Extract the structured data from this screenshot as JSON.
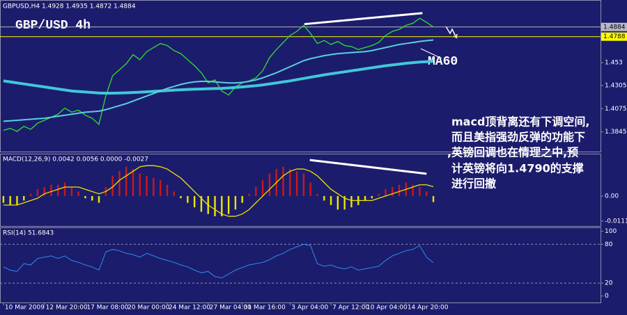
{
  "chart_data": [
    {
      "type": "line",
      "header": "GBPUSD,H4  1.4928 1.4935 1.4872 1.4884",
      "annotations": [
        "GBP/USD 4h",
        "MA60",
        "macd顶背离还有下调空间,",
        "而且美指强劲反弹的功能下",
        ",英镑回调也在情理之中,预",
        "计英镑将向1.4790的支撑",
        "进行回撤"
      ],
      "xlim": [
        -0.5,
        87.5
      ],
      "ylim": [
        1.365,
        1.5137
      ],
      "yticks": [
        1.453,
        1.4305,
        1.4075,
        1.3845
      ],
      "hlines": [
        {
          "value": 1.4884,
          "color": "#b8b8c8"
        },
        {
          "value": 1.4788,
          "color": "#ffff00"
        }
      ],
      "trendline": {
        "x": [
          44.1,
          61.4
        ],
        "y": [
          1.4912,
          1.5021
        ]
      },
      "series": [
        {
          "color": "#30e030",
          "width": 1.3,
          "values": [
            1.386,
            1.388,
            1.385,
            1.39,
            1.387,
            1.393,
            1.396,
            1.399,
            1.402,
            1.408,
            1.404,
            1.406,
            1.401,
            1.398,
            1.392,
            1.42,
            1.44,
            1.446,
            1.452,
            1.461,
            1.456,
            1.464,
            1.468,
            1.472,
            1.47,
            1.465,
            1.462,
            1.456,
            1.45,
            1.443,
            1.433,
            1.436,
            1.425,
            1.421,
            1.429,
            1.433,
            1.435,
            1.438,
            1.445,
            1.458,
            1.466,
            1.473,
            1.48,
            1.484,
            1.49,
            1.482,
            1.472,
            1.475,
            1.471,
            1.474,
            1.47,
            1.469,
            1.466,
            1.468,
            1.47,
            1.473,
            1.48,
            1.484,
            1.486,
            1.49,
            1.492,
            1.497,
            1.493,
            1.4884
          ]
        },
        {
          "color": "#40c8d8",
          "width": 4,
          "values": [
            1.435,
            1.434,
            1.433,
            1.432,
            1.431,
            1.43,
            1.429,
            1.428,
            1.427,
            1.426,
            1.425,
            1.4245,
            1.424,
            1.4235,
            1.423,
            1.4228,
            1.4228,
            1.423,
            1.4232,
            1.4235,
            1.4238,
            1.4242,
            1.4246,
            1.425,
            1.4254,
            1.4258,
            1.4262,
            1.4265,
            1.4268,
            1.427,
            1.4272,
            1.4274,
            1.4276,
            1.428,
            1.4285,
            1.429,
            1.4296,
            1.4302,
            1.431,
            1.432,
            1.433,
            1.434,
            1.435,
            1.4362,
            1.4374,
            1.4386,
            1.4398,
            1.441,
            1.442,
            1.443,
            1.444,
            1.445,
            1.446,
            1.447,
            1.448,
            1.449,
            1.45,
            1.4508,
            1.4516,
            1.4524,
            1.453,
            1.4536,
            1.454,
            1.4544
          ]
        },
        {
          "color": "#58d0e0",
          "width": 2,
          "values": [
            1.395,
            1.3955,
            1.396,
            1.3965,
            1.397,
            1.3975,
            1.398,
            1.399,
            1.4,
            1.401,
            1.402,
            1.403,
            1.404,
            1.4045,
            1.405,
            1.4065,
            1.4085,
            1.4105,
            1.4125,
            1.415,
            1.4175,
            1.42,
            1.4225,
            1.425,
            1.4275,
            1.4295,
            1.4315,
            1.433,
            1.434,
            1.4345,
            1.4345,
            1.434,
            1.4335,
            1.433,
            1.433,
            1.4335,
            1.4345,
            1.436,
            1.438,
            1.4405,
            1.443,
            1.446,
            1.449,
            1.452,
            1.455,
            1.457,
            1.4585,
            1.46,
            1.461,
            1.462,
            1.4625,
            1.463,
            1.4635,
            1.464,
            1.465,
            1.4665,
            1.468,
            1.4695,
            1.471,
            1.472,
            1.473,
            1.474,
            1.4748,
            1.4755
          ]
        }
      ]
    },
    {
      "type": "bar",
      "header": "MACD(12,26,9) 0.0042 0.0056 0.0000 -0.0027",
      "xlim": [
        -0.5,
        87.5
      ],
      "ylim": [
        -0.0133,
        0.0185
      ],
      "yticks": [
        {
          "value": 0,
          "label": "0.00"
        },
        -0.0111
      ],
      "trendline": {
        "x": [
          44.9,
          62.0
        ],
        "y": [
          0.016,
          0.0099
        ]
      },
      "series": [
        {
          "color": "#cc1818",
          "negative_color": "#e8e800",
          "values": [
            -0.003,
            -0.004,
            -0.004,
            -0.002,
            0.001,
            0.003,
            0.004,
            0.005,
            0.005,
            0.006,
            0.004,
            0.002,
            -0.001,
            -0.002,
            -0.003,
            0.004,
            0.009,
            0.011,
            0.013,
            0.012,
            0.01,
            0.009,
            0.008,
            0.007,
            0.005,
            0.002,
            -0.001,
            -0.003,
            -0.005,
            -0.007,
            -0.008,
            -0.009,
            -0.009,
            -0.008,
            -0.006,
            -0.003,
            0.001,
            0.004,
            0.007,
            0.01,
            0.012,
            0.013,
            0.012,
            0.011,
            0.01,
            0.006,
            0.001,
            -0.002,
            -0.004,
            -0.006,
            -0.006,
            -0.005,
            -0.004,
            -0.002,
            -0.001,
            0.001,
            0.003,
            0.004,
            0.005,
            0.006,
            0.005,
            0.004,
            0.002,
            -0.0027
          ]
        },
        {
          "color": "#f0e000",
          "width": 1.3,
          "values": [
            -0.004,
            -0.004,
            -0.004,
            -0.003,
            -0.002,
            -0.001,
            0.001,
            0.002,
            0.003,
            0.004,
            0.004,
            0.004,
            0.003,
            0.002,
            0.001,
            0.002,
            0.004,
            0.007,
            0.009,
            0.011,
            0.013,
            0.0135,
            0.0135,
            0.013,
            0.012,
            0.01,
            0.008,
            0.005,
            0.002,
            -0.001,
            -0.004,
            -0.006,
            -0.008,
            -0.009,
            -0.009,
            -0.008,
            -0.006,
            -0.003,
            0.0,
            0.003,
            0.006,
            0.009,
            0.011,
            0.012,
            0.012,
            0.011,
            0.009,
            0.006,
            0.003,
            0.001,
            -0.001,
            -0.002,
            -0.002,
            -0.002,
            -0.002,
            -0.001,
            0.0,
            0.001,
            0.002,
            0.003,
            0.004,
            0.005,
            0.005,
            0.0042
          ]
        }
      ]
    },
    {
      "type": "line",
      "header": "RSI(14) 51.6843",
      "xlim": [
        -0.5,
        87.5
      ],
      "ylim": [
        -10,
        105
      ],
      "yticks": [
        100,
        80,
        20,
        0
      ],
      "levels": [
        80,
        20
      ],
      "xticks": [
        {
          "value": 0,
          "label": "10 Mar 2009"
        },
        {
          "value": 6,
          "label": "12 Mar 20:00"
        },
        {
          "value": 12,
          "label": "17 Mar 08:00"
        },
        {
          "value": 18,
          "label": "20 Mar 00:00"
        },
        {
          "value": 24,
          "label": "24 Mar 12:00"
        },
        {
          "value": 30,
          "label": "27 Mar 04:00"
        },
        {
          "value": 35,
          "label": "31 Mar 16:00"
        },
        {
          "value": 42,
          "label": "3 Apr 04:00"
        },
        {
          "value": 48,
          "label": "7 Apr 12:00"
        },
        {
          "value": 53,
          "label": "10 Apr 04:00"
        },
        {
          "value": 59,
          "label": "14 Apr 20:00"
        }
      ],
      "series": [
        {
          "color": "#2f8cf0",
          "width": 1,
          "values": [
            45,
            40,
            38,
            50,
            48,
            58,
            60,
            62,
            58,
            62,
            55,
            52,
            48,
            45,
            40,
            68,
            72,
            70,
            66,
            64,
            60,
            66,
            62,
            58,
            55,
            52,
            48,
            45,
            40,
            36,
            38,
            30,
            28,
            34,
            40,
            44,
            48,
            50,
            52,
            56,
            62,
            66,
            72,
            76,
            80,
            78,
            50,
            46,
            48,
            44,
            42,
            45,
            40,
            42,
            44,
            46,
            55,
            62,
            66,
            70,
            72,
            78,
            60,
            51.6843
          ]
        }
      ]
    }
  ]
}
